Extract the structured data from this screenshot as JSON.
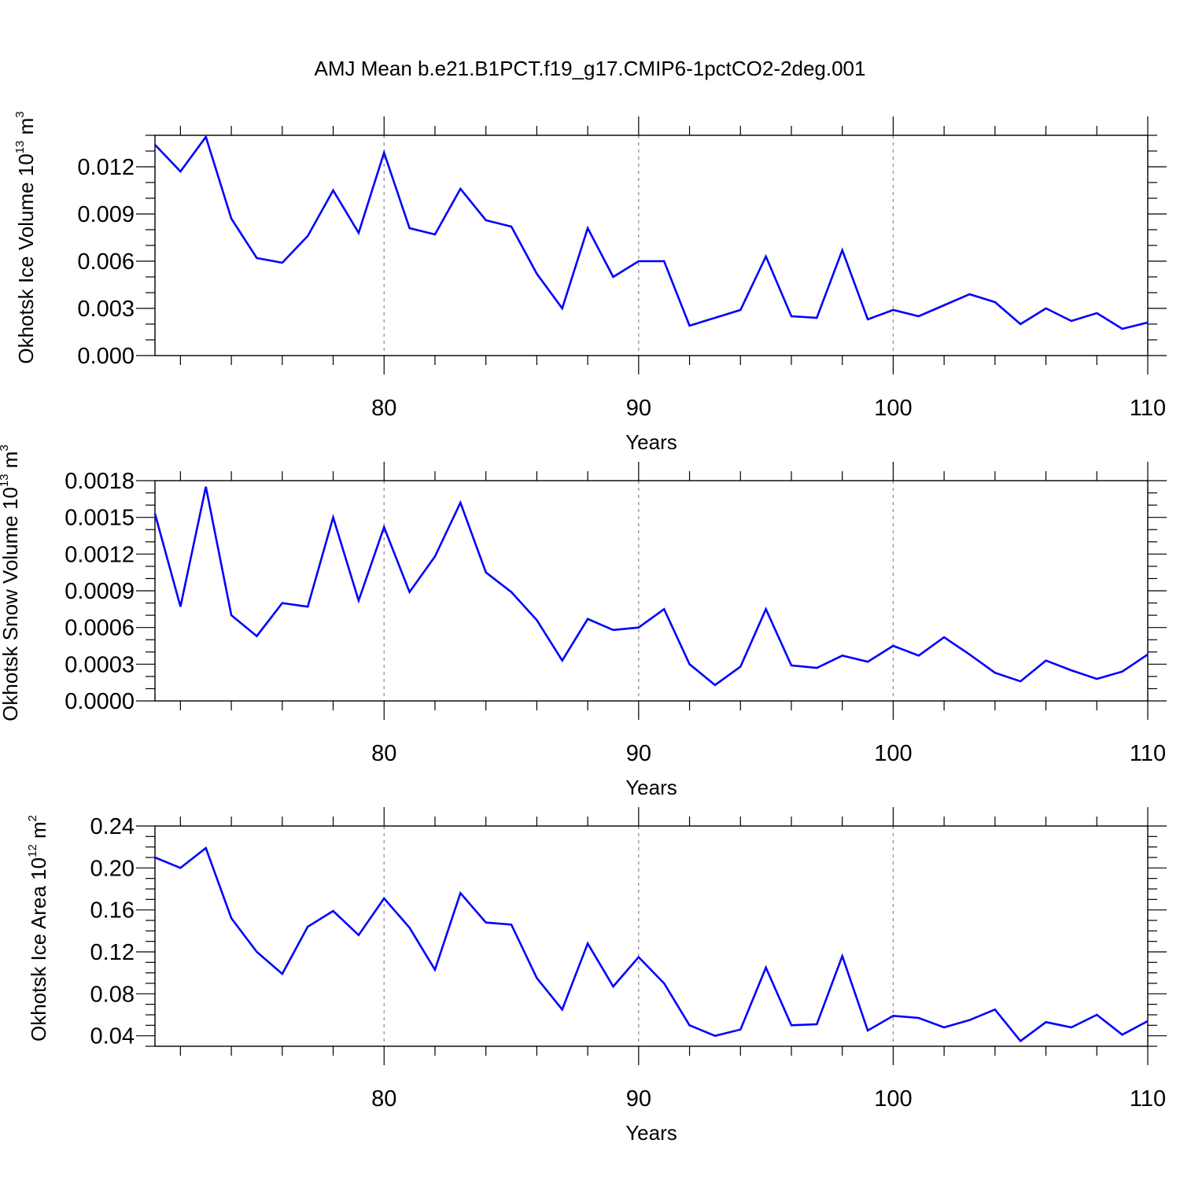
{
  "title": "AMJ Mean b.e21.B1PCT.f19_g17.CMIP6-1pctCO2-2deg.001",
  "style": {
    "line_color": "#0000ff",
    "grid_color": "#888888"
  },
  "chart_data": [
    {
      "type": "line",
      "ylabel": "Okhotsk Ice Volume",
      "ylabel_unit_base": "10",
      "ylabel_unit_exp": "13",
      "ylabel_unit_m": "m",
      "ylabel_unit_m_exp": "3",
      "xlabel": "Years",
      "xlim": [
        71,
        110
      ],
      "ylim": [
        0,
        0.014
      ],
      "xticks": [
        80,
        90,
        100,
        110
      ],
      "yticks": [
        "0.000",
        "0.003",
        "0.006",
        "0.009",
        "0.012"
      ],
      "ymajor_step": 0.003,
      "yminor_step": 0.001,
      "grid": "vertical-dashed",
      "x": [
        71,
        72,
        73,
        74,
        75,
        76,
        77,
        78,
        79,
        80,
        81,
        82,
        83,
        84,
        85,
        86,
        87,
        88,
        89,
        90,
        91,
        92,
        93,
        94,
        95,
        96,
        97,
        98,
        99,
        100,
        101,
        102,
        103,
        104,
        105,
        106,
        107,
        108,
        109,
        110
      ],
      "values": [
        0.0134,
        0.0117,
        0.0139,
        0.0087,
        0.0062,
        0.0059,
        0.0076,
        0.0105,
        0.0078,
        0.0129,
        0.0081,
        0.0077,
        0.0106,
        0.0086,
        0.0082,
        0.0052,
        0.003,
        0.0081,
        0.005,
        0.006,
        0.006,
        0.0019,
        0.0024,
        0.0029,
        0.0063,
        0.0025,
        0.0024,
        0.0067,
        0.0023,
        0.0029,
        0.0025,
        0.0032,
        0.0039,
        0.0034,
        0.002,
        0.003,
        0.0022,
        0.0027,
        0.0017,
        0.0021
      ]
    },
    {
      "type": "line",
      "ylabel": "Okhotsk Snow Volume",
      "ylabel_unit_base": "10",
      "ylabel_unit_exp": "13",
      "ylabel_unit_m": "m",
      "ylabel_unit_m_exp": "3",
      "xlabel": "Years",
      "xlim": [
        71,
        110
      ],
      "ylim": [
        0,
        0.0018
      ],
      "xticks": [
        80,
        90,
        100,
        110
      ],
      "yticks": [
        "0.0000",
        "0.0003",
        "0.0006",
        "0.0009",
        "0.0012",
        "0.0015",
        "0.0018"
      ],
      "ymajor_step": 0.0003,
      "yminor_step": 0.0001,
      "grid": "vertical-dashed",
      "x": [
        71,
        72,
        73,
        74,
        75,
        76,
        77,
        78,
        79,
        80,
        81,
        82,
        83,
        84,
        85,
        86,
        87,
        88,
        89,
        90,
        91,
        92,
        93,
        94,
        95,
        96,
        97,
        98,
        99,
        100,
        101,
        102,
        103,
        104,
        105,
        106,
        107,
        108,
        109,
        110
      ],
      "values": [
        0.00153,
        0.00077,
        0.00175,
        0.0007,
        0.00053,
        0.0008,
        0.00077,
        0.0015,
        0.00082,
        0.00142,
        0.00089,
        0.00118,
        0.00162,
        0.00105,
        0.00089,
        0.00066,
        0.00033,
        0.00067,
        0.00058,
        0.0006,
        0.00075,
        0.0003,
        0.00013,
        0.00028,
        0.00075,
        0.00029,
        0.00027,
        0.00037,
        0.00032,
        0.00045,
        0.00037,
        0.00052,
        0.00038,
        0.00023,
        0.00016,
        0.00033,
        0.00025,
        0.00018,
        0.00024,
        0.00038
      ]
    },
    {
      "type": "line",
      "ylabel": "Okhotsk Ice Area",
      "ylabel_unit_base": "10",
      "ylabel_unit_exp": "12",
      "ylabel_unit_m": "m",
      "ylabel_unit_m_exp": "2",
      "xlabel": "Years",
      "xlim": [
        71,
        110
      ],
      "ylim": [
        0.03,
        0.24
      ],
      "xticks": [
        80,
        90,
        100,
        110
      ],
      "yticks": [
        "0.04",
        "0.08",
        "0.12",
        "0.16",
        "0.20",
        "0.24"
      ],
      "ymajor_start": 0.04,
      "ymajor_step": 0.04,
      "yminor_step": 0.01,
      "grid": "vertical-dashed",
      "x": [
        71,
        72,
        73,
        74,
        75,
        76,
        77,
        78,
        79,
        80,
        81,
        82,
        83,
        84,
        85,
        86,
        87,
        88,
        89,
        90,
        91,
        92,
        93,
        94,
        95,
        96,
        97,
        98,
        99,
        100,
        101,
        102,
        103,
        104,
        105,
        106,
        107,
        108,
        109,
        110
      ],
      "values": [
        0.21,
        0.2,
        0.219,
        0.152,
        0.12,
        0.099,
        0.144,
        0.159,
        0.136,
        0.171,
        0.143,
        0.103,
        0.176,
        0.148,
        0.146,
        0.095,
        0.065,
        0.128,
        0.087,
        0.115,
        0.09,
        0.05,
        0.04,
        0.046,
        0.105,
        0.05,
        0.051,
        0.116,
        0.045,
        0.059,
        0.057,
        0.048,
        0.055,
        0.065,
        0.035,
        0.053,
        0.048,
        0.06,
        0.041,
        0.054
      ]
    }
  ]
}
